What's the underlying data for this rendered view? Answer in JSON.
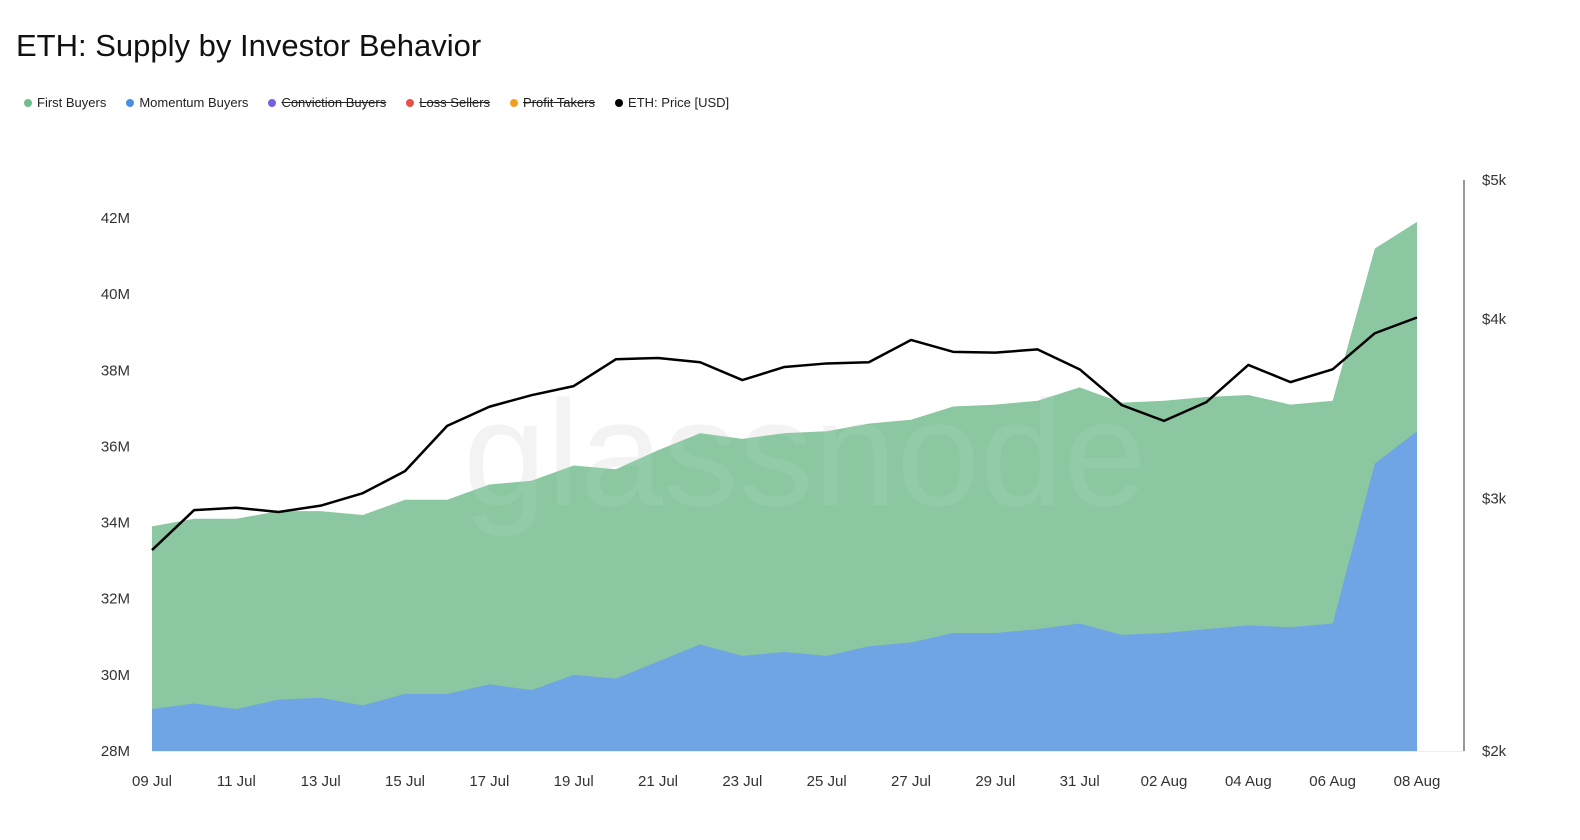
{
  "chart_data": {
    "type": "area",
    "title": "ETH: Supply by Investor Behavior",
    "watermark": "glassnode",
    "x": [
      "09 Jul",
      "10 Jul",
      "11 Jul",
      "12 Jul",
      "13 Jul",
      "14 Jul",
      "15 Jul",
      "16 Jul",
      "17 Jul",
      "18 Jul",
      "19 Jul",
      "20 Jul",
      "21 Jul",
      "22 Jul",
      "23 Jul",
      "24 Jul",
      "25 Jul",
      "26 Jul",
      "27 Jul",
      "28 Jul",
      "29 Jul",
      "30 Jul",
      "31 Jul",
      "01 Aug",
      "02 Aug",
      "03 Aug",
      "04 Aug",
      "05 Aug",
      "06 Aug",
      "07 Aug",
      "08 Aug"
    ],
    "x_ticks": [
      "09 Jul",
      "11 Jul",
      "13 Jul",
      "15 Jul",
      "17 Jul",
      "19 Jul",
      "21 Jul",
      "23 Jul",
      "25 Jul",
      "27 Jul",
      "29 Jul",
      "31 Jul",
      "02 Aug",
      "04 Aug",
      "06 Aug",
      "08 Aug"
    ],
    "y_left": {
      "min": 28,
      "max": 43.5,
      "unit": "M",
      "ticks": [
        "28M",
        "30M",
        "32M",
        "34M",
        "36M",
        "38M",
        "40M",
        "42M"
      ],
      "tick_values": [
        28,
        30,
        32,
        34,
        36,
        38,
        40,
        42
      ]
    },
    "y_right": {
      "scale": "log",
      "min": 2000,
      "max": 5000,
      "ticks": [
        "$2k",
        "$3k",
        "$4k",
        "$5k"
      ],
      "tick_values": [
        2000,
        3000,
        4000,
        5000
      ]
    },
    "grid": false,
    "legend_placement": "top-left",
    "series": [
      {
        "name": "First Buyers",
        "color": "#8bc8a2",
        "dot_color": "#6fbf8c",
        "visible": true,
        "stacked": true,
        "values": [
          4.8,
          4.85,
          5.0,
          4.95,
          4.9,
          5.0,
          5.1,
          5.1,
          5.25,
          5.5,
          5.5,
          5.5,
          5.55,
          5.55,
          5.7,
          5.75,
          5.9,
          5.85,
          5.85,
          5.95,
          6.0,
          6.0,
          6.2,
          6.1,
          6.1,
          6.1,
          6.05,
          5.85,
          5.85,
          5.65,
          5.5
        ]
      },
      {
        "name": "Momentum Buyers",
        "color": "#6fa5e4",
        "dot_color": "#4a90e2",
        "visible": true,
        "stacked": true,
        "values": [
          29.1,
          29.25,
          29.1,
          29.35,
          29.4,
          29.2,
          29.5,
          29.5,
          29.75,
          29.6,
          30.0,
          29.9,
          30.35,
          30.8,
          30.5,
          30.6,
          30.5,
          30.75,
          30.85,
          31.1,
          31.1,
          31.2,
          31.35,
          31.05,
          31.1,
          31.2,
          31.3,
          31.25,
          31.35,
          35.55,
          36.4
        ]
      },
      {
        "name": "Conviction Buyers",
        "dot_color": "#7a5de0",
        "visible": false
      },
      {
        "name": "Loss Sellers",
        "dot_color": "#e8504a",
        "visible": false
      },
      {
        "name": "Profit Takers",
        "dot_color": "#f0a020",
        "visible": false
      },
      {
        "name": "ETH: Price [USD]",
        "color": "#000000",
        "dot_color": "#000000",
        "visible": true,
        "axis": "right",
        "values": [
          2761,
          2944,
          2955,
          2935,
          2965,
          3025,
          3134,
          3370,
          3475,
          3540,
          3592,
          3750,
          3758,
          3732,
          3627,
          3704,
          3725,
          3732,
          3868,
          3795,
          3790,
          3810,
          3690,
          3484,
          3397,
          3500,
          3716,
          3615,
          3690,
          3910,
          4010
        ]
      }
    ]
  }
}
